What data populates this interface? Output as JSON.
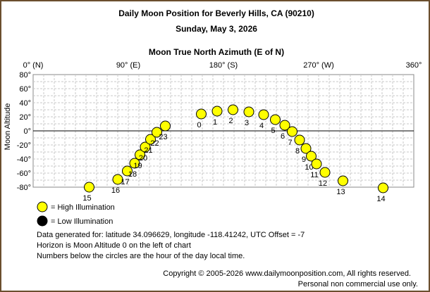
{
  "title": "Daily Moon Position for Beverly Hills, CA (90210)",
  "subtitle": "Sunday, May 3, 2026",
  "chart_data": {
    "type": "scatter",
    "xlabel": "Moon True North Azimuth (E of N)",
    "ylabel": "Moon Altitude",
    "xlim": [
      0,
      360
    ],
    "ylim": [
      -80,
      80
    ],
    "x_ticks": [
      {
        "value": 0,
        "label": "0° (N)"
      },
      {
        "value": 90,
        "label": "90° (E)"
      },
      {
        "value": 180,
        "label": "180° (S)"
      },
      {
        "value": 270,
        "label": "270° (W)"
      },
      {
        "value": 360,
        "label": "360°"
      }
    ],
    "y_ticks": [
      {
        "value": 80,
        "label": "80°"
      },
      {
        "value": 60,
        "label": "60°"
      },
      {
        "value": 40,
        "label": "40°"
      },
      {
        "value": 20,
        "label": "20°"
      },
      {
        "value": 0,
        "label": "0°"
      },
      {
        "value": -20,
        "label": "-20°"
      },
      {
        "value": -40,
        "label": "-40°"
      },
      {
        "value": -60,
        "label": "-60°"
      },
      {
        "value": -80,
        "label": "-80°"
      }
    ],
    "grid": true,
    "series": [
      {
        "name": "High Illumination",
        "color": "#ffff00",
        "points": [
          {
            "hour": "0",
            "x": 159,
            "y": 24
          },
          {
            "hour": "1",
            "x": 174,
            "y": 28
          },
          {
            "hour": "2",
            "x": 189,
            "y": 30
          },
          {
            "hour": "3",
            "x": 204,
            "y": 27
          },
          {
            "hour": "4",
            "x": 218,
            "y": 23
          },
          {
            "hour": "5",
            "x": 229,
            "y": 16
          },
          {
            "hour": "6",
            "x": 238,
            "y": 8
          },
          {
            "hour": "7",
            "x": 245,
            "y": -1
          },
          {
            "hour": "8",
            "x": 252,
            "y": -13
          },
          {
            "hour": "9",
            "x": 258,
            "y": -25
          },
          {
            "hour": "10",
            "x": 263,
            "y": -36
          },
          {
            "hour": "11",
            "x": 268,
            "y": -47
          },
          {
            "hour": "12",
            "x": 276,
            "y": -59
          },
          {
            "hour": "13",
            "x": 293,
            "y": -71
          },
          {
            "hour": "14",
            "x": 331,
            "y": -81
          },
          {
            "hour": "15",
            "x": 53,
            "y": -80
          },
          {
            "hour": "16",
            "x": 80,
            "y": -69
          },
          {
            "hour": "17",
            "x": 89,
            "y": -57
          },
          {
            "hour": "18",
            "x": 96,
            "y": -46
          },
          {
            "hour": "19",
            "x": 101,
            "y": -34
          },
          {
            "hour": "20",
            "x": 106,
            "y": -23
          },
          {
            "hour": "21",
            "x": 111,
            "y": -12
          },
          {
            "hour": "22",
            "x": 117,
            "y": -2
          },
          {
            "hour": "23",
            "x": 125,
            "y": 7
          }
        ]
      },
      {
        "name": "Low Illumination",
        "color": "#000000",
        "points": []
      }
    ]
  },
  "legend": {
    "high_label": "= High Illumination",
    "low_label": "= Low Illumination"
  },
  "notes": [
    "Data generated for: latitude 34.096629, longitude -118.41242, UTC Offset = -7",
    "Horizon is Moon Altitude 0 on the left of chart",
    "Numbers below the circles are the hour of the day local time."
  ],
  "footer": {
    "line1": "Copyright © 2005-2026 www.dailymoonposition.com, All rights reserved.",
    "line2": "Personal non commercial use only."
  }
}
